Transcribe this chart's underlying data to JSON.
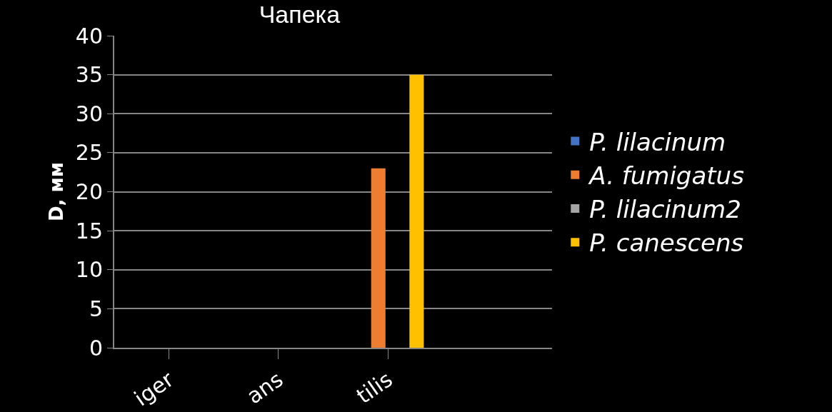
{
  "chart_data": {
    "type": "bar",
    "title": "Чапека",
    "ylabel": "D, мм",
    "categories": [
      "iger",
      "ans",
      "tilis",
      null
    ],
    "series": [
      {
        "name": "P. lilacinum",
        "color": "#4472c4",
        "values": [
          null,
          null,
          null,
          null
        ]
      },
      {
        "name": "A. fumigatus",
        "color": "#ed7d31",
        "values": [
          null,
          null,
          23,
          null
        ]
      },
      {
        "name": "P. lilacinum2",
        "color": "#a5a5a5",
        "values": [
          null,
          null,
          null,
          null
        ]
      },
      {
        "name": "P. canescens",
        "color": "#ffc000",
        "values": [
          null,
          null,
          35,
          null
        ]
      }
    ],
    "ylim": [
      0,
      40
    ],
    "yticks": [
      0,
      5,
      10,
      15,
      20,
      25,
      30,
      35,
      40
    ],
    "grid": "y",
    "legend": "right"
  }
}
